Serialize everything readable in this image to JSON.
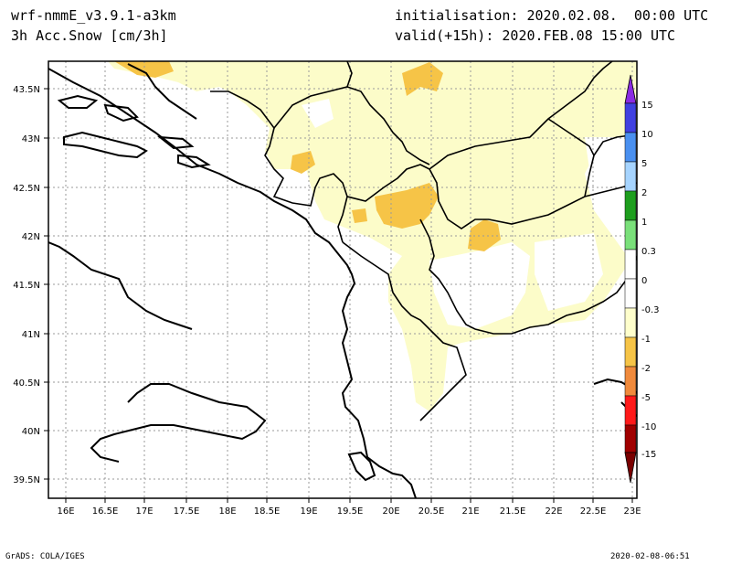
{
  "header": {
    "model": "wrf-nmmE_v3.9.1-a3km",
    "variable": "3h Acc.Snow [cm/3h]",
    "initialisation": "initialisation: 2020.02.08.  00:00 UTC",
    "valid": "valid(+15h): 2020.FEB.08 15:00 UTC"
  },
  "footer": {
    "left": "GrADS: COLA/IGES",
    "right": "2020-02-08-06:51"
  },
  "map": {
    "lat_labels": [
      "43.5N",
      "43N",
      "42.5N",
      "42N",
      "41.5N",
      "41N",
      "40.5N",
      "40N",
      "39.5N"
    ],
    "lon_labels": [
      "16E",
      "16.5E",
      "17E",
      "17.5E",
      "18E",
      "18.5E",
      "19E",
      "19.5E",
      "20E",
      "20.5E",
      "21E",
      "21.5E",
      "22E",
      "22.5E",
      "23E"
    ],
    "grid": "dotted",
    "colors": {
      "light_snow": "#fcfcc9",
      "moderate_snow": "#f6c447",
      "coast": "#000000"
    }
  },
  "legend": {
    "labels": [
      "15",
      "10",
      "5",
      "2",
      "1",
      "0.3",
      "0",
      "-0.3",
      "-1",
      "-2",
      "-5",
      "-10",
      "-15"
    ],
    "colors": [
      "#8a2be2",
      "#4040e0",
      "#4a90f0",
      "#a6d4ff",
      "#1e9e1e",
      "#7ae07a",
      "#ffffff",
      "#ffffff",
      "#ffffcc",
      "#f6c447",
      "#f08a3c",
      "#ff1a1a",
      "#a00000",
      "#7a0000"
    ]
  }
}
